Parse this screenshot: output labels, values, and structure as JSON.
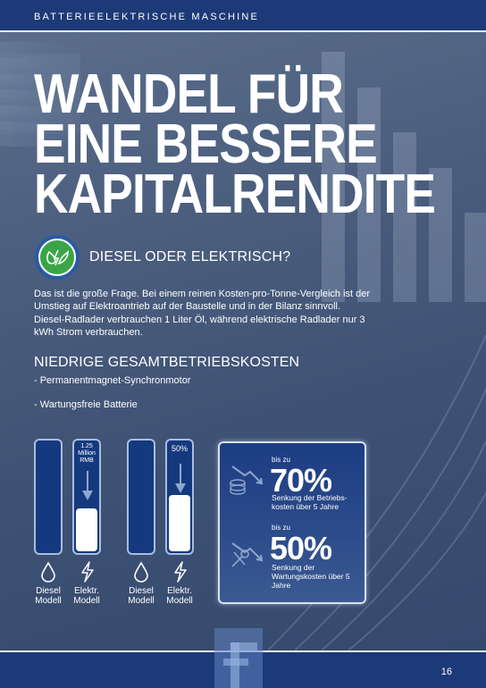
{
  "header": {
    "section_label": "BATTERIEELEKTRISCHE MASCHINE"
  },
  "headline": [
    "WANDEL FÜR",
    "EINE BESSERE",
    "KAPITALRENDITE"
  ],
  "question": "DIESEL ODER ELEKTRISCH?",
  "intro": "Das ist die große Frage. Bei einem reinen Kosten-pro-Tonne-Vergleich ist der Umstieg auf Elektroantrieb auf der Baustelle und in der Bilanz sinnvoll. Diesel-Radlader verbrauchen 1 Liter Öl, während elektrische Radlader nur 3 kWh Strom verbrauchen.",
  "subhead": "NIEDRIGE GESAMTBETRIEBSKOSTEN",
  "bullets": [
    "- Permanentmagnet-Synchronmotor",
    "- Wartungsfreie Batterie"
  ],
  "comparison": [
    {
      "caption_lines": [
        "1.25",
        "Million",
        "RMB"
      ],
      "diesel_label": [
        "Diesel",
        "Modell"
      ],
      "electric_label": [
        "Elektr.",
        "Modell"
      ],
      "electric_fill_fraction": 0.38
    },
    {
      "caption_lines": [
        "50%"
      ],
      "diesel_label": [
        "Diesel",
        "Modell"
      ],
      "electric_label": [
        "Elektr.",
        "Modell"
      ],
      "electric_fill_fraction": 0.5
    }
  ],
  "savings": [
    {
      "up_to": "bis zu",
      "percent": "70%",
      "desc": "Senkung der Betriebs-kosten über 5 Jahre",
      "icon": "coins-down-icon"
    },
    {
      "up_to": "bis zu",
      "percent": "50%",
      "desc": "Senkung der Wartungskosten über 5 Jahre",
      "icon": "tools-down-icon"
    }
  ],
  "footer": {
    "page_number": "16"
  },
  "colors": {
    "navy": "#1c3a78",
    "tube_blue": "#15397e",
    "eco_green": "#3aa447"
  }
}
